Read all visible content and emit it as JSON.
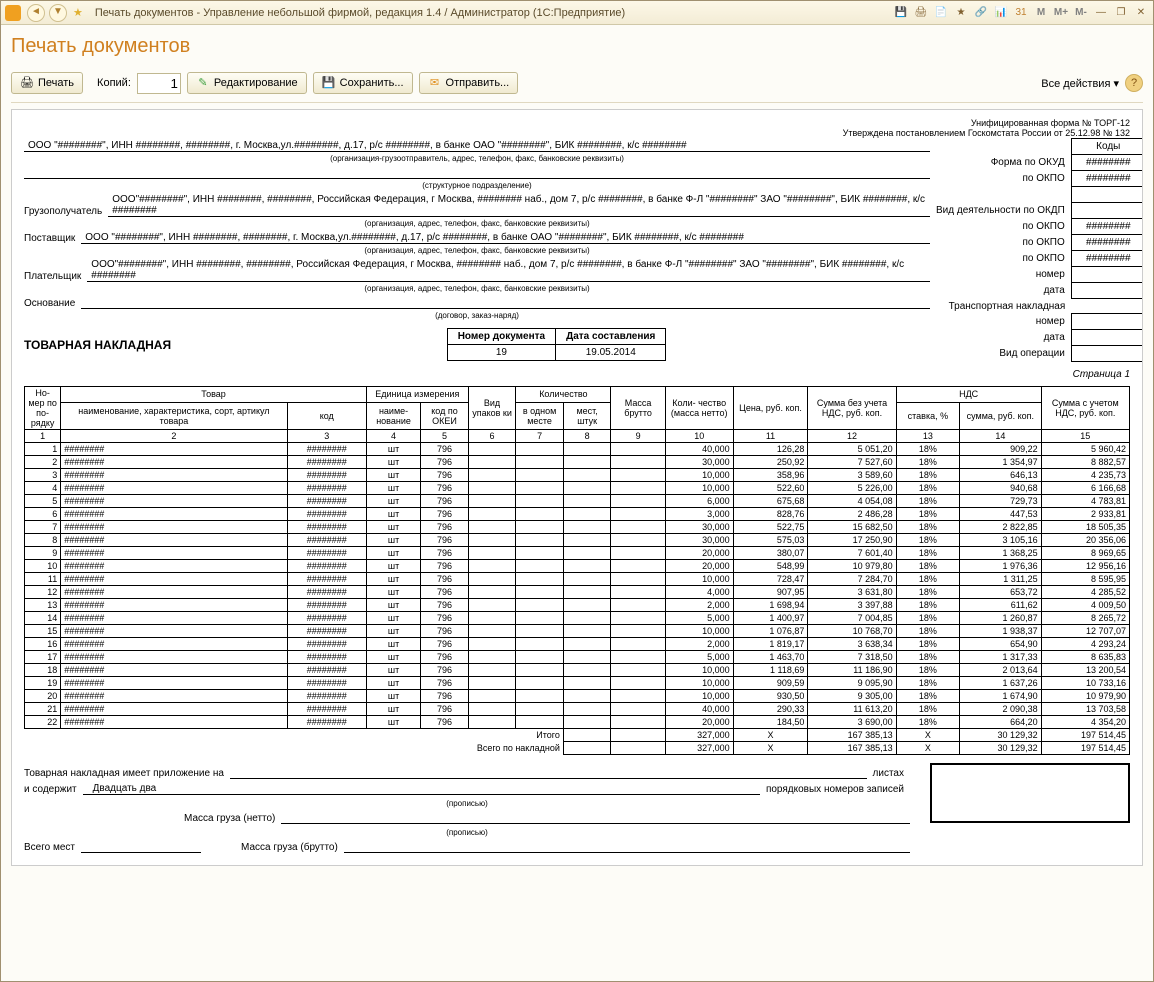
{
  "window": {
    "title": "Печать документов - Управление небольшой фирмой, редакция 1.4 / Администратор  (1С:Предприятие)"
  },
  "page": {
    "title": "Печать документов"
  },
  "toolbar": {
    "print": "Печать",
    "copies_label": "Копий:",
    "copies_value": "1",
    "edit": "Редактирование",
    "save": "Сохранить...",
    "send": "Отправить...",
    "all_actions": "Все действия"
  },
  "doc": {
    "form_note1": "Унифицированная форма № ТОРГ-12",
    "form_note2": "Утверждена постановлением Госкомстата России от 25.12.98 № 132",
    "codes_header": "Коды",
    "okud_label": "Форма по ОКУД",
    "okud": "########",
    "okpo_label": "по ОКПО",
    "okpo": "########",
    "org_line": "ООО \"########\",  ИНН ########,  ########, г. Москва,ул.########, д.17,  р/с ########,  в банке ОАО \"########\",  БИК ########,  к/с ########",
    "org_sub": "(организация-грузоотправитель, адрес, телефон, факс, банковские реквизиты)",
    "struct_sub": "(структурное подразделение)",
    "okdp_label": "Вид деятельности по ОКДП",
    "consignee_label": "Грузополучатель",
    "consignee": "ООО\"########\",  ИНН ########,  ########, Российская Федерация, г Москва, ######## наб., дом 7,  р/с ########,  в банке Ф-Л \"########\" ЗАО \"########\", БИК ########,  к/с ########",
    "supplier_label": "Поставщик",
    "supplier": "ООО \"########\",  ИНН ########,  ########, г. Москва,ул.########, д.17,  р/с ########,  в банке ОАО \"########\",  БИК ########,  к/с ########",
    "payer_label": "Плательщик",
    "payer": "ООО\"########\",  ИНН ########,  ########, Российская Федерация, г Москва, ######## наб., дом 7,  р/с ########,  в банке Ф-Л \"########\" ЗАО \"########\", БИК ########,  к/с ########",
    "req_sub": "(организация, адрес, телефон, факс, банковские реквизиты)",
    "basis_label": "Основание",
    "basis_sub": "(договор, заказ-наряд)",
    "transport_label": "Транспортная накладная",
    "op_type_label": "Вид операции",
    "side_labels": {
      "nomer": "номер",
      "data": "дата"
    },
    "doc_title": "ТОВАРНАЯ НАКЛАДНАЯ",
    "doc_num_header": "Номер документа",
    "doc_date_header": "Дата составления",
    "doc_num": "19",
    "doc_date": "19.05.2014",
    "page_label": "Страница 1"
  },
  "table": {
    "headers": {
      "num": "Но-\nмер\nпо по-\nрядку",
      "goods": "Товар",
      "name": "наименование, характеристика, сорт,\nартикул товара",
      "code": "код",
      "unit": "Единица измерения",
      "unit_name": "наиме-\nнование",
      "unit_code": "код по\nОКЕИ",
      "pack": "Вид\nупаков\nки",
      "qty_group": "Количество",
      "qty_place": "в\nодном\nместе",
      "qty_places": "мест,\nштук",
      "gross": "Масса\nбрутто",
      "net": "Коли-\nчество\n(масса\nнетто)",
      "price": "Цена,\nруб. коп.",
      "sum_no_vat": "Сумма без\nучета НДС,\nруб. коп.",
      "vat": "НДС",
      "vat_rate": "ставка, %",
      "vat_sum": "сумма,\nруб. коп.",
      "sum_vat": "Сумма с\nучетом\nНДС,\nруб. коп."
    },
    "col_nums": [
      "1",
      "2",
      "3",
      "4",
      "5",
      "6",
      "7",
      "8",
      "9",
      "10",
      "11",
      "12",
      "13",
      "14",
      "15"
    ],
    "rows": [
      {
        "n": "1",
        "name": "########",
        "code": "########",
        "un": "шт",
        "uc": "796",
        "qty": "40,000",
        "price": "126,28",
        "sum": "5 051,20",
        "rate": "18%",
        "vat": "909,22",
        "total": "5 960,42"
      },
      {
        "n": "2",
        "name": "########",
        "code": "########",
        "un": "шт",
        "uc": "796",
        "qty": "30,000",
        "price": "250,92",
        "sum": "7 527,60",
        "rate": "18%",
        "vat": "1 354,97",
        "total": "8 882,57"
      },
      {
        "n": "3",
        "name": "########",
        "code": "########",
        "un": "шт",
        "uc": "796",
        "qty": "10,000",
        "price": "358,96",
        "sum": "3 589,60",
        "rate": "18%",
        "vat": "646,13",
        "total": "4 235,73"
      },
      {
        "n": "4",
        "name": "########",
        "code": "########",
        "un": "шт",
        "uc": "796",
        "qty": "10,000",
        "price": "522,60",
        "sum": "5 226,00",
        "rate": "18%",
        "vat": "940,68",
        "total": "6 166,68"
      },
      {
        "n": "5",
        "name": "########",
        "code": "########",
        "un": "шт",
        "uc": "796",
        "qty": "6,000",
        "price": "675,68",
        "sum": "4 054,08",
        "rate": "18%",
        "vat": "729,73",
        "total": "4 783,81"
      },
      {
        "n": "6",
        "name": "########",
        "code": "########",
        "un": "шт",
        "uc": "796",
        "qty": "3,000",
        "price": "828,76",
        "sum": "2 486,28",
        "rate": "18%",
        "vat": "447,53",
        "total": "2 933,81"
      },
      {
        "n": "7",
        "name": "########",
        "code": "########",
        "un": "шт",
        "uc": "796",
        "qty": "30,000",
        "price": "522,75",
        "sum": "15 682,50",
        "rate": "18%",
        "vat": "2 822,85",
        "total": "18 505,35"
      },
      {
        "n": "8",
        "name": "########",
        "code": "########",
        "un": "шт",
        "uc": "796",
        "qty": "30,000",
        "price": "575,03",
        "sum": "17 250,90",
        "rate": "18%",
        "vat": "3 105,16",
        "total": "20 356,06"
      },
      {
        "n": "9",
        "name": "########",
        "code": "########",
        "un": "шт",
        "uc": "796",
        "qty": "20,000",
        "price": "380,07",
        "sum": "7 601,40",
        "rate": "18%",
        "vat": "1 368,25",
        "total": "8 969,65"
      },
      {
        "n": "10",
        "name": "########",
        "code": "########",
        "un": "шт",
        "uc": "796",
        "qty": "20,000",
        "price": "548,99",
        "sum": "10 979,80",
        "rate": "18%",
        "vat": "1 976,36",
        "total": "12 956,16"
      },
      {
        "n": "11",
        "name": "########",
        "code": "########",
        "un": "шт",
        "uc": "796",
        "qty": "10,000",
        "price": "728,47",
        "sum": "7 284,70",
        "rate": "18%",
        "vat": "1 311,25",
        "total": "8 595,95"
      },
      {
        "n": "12",
        "name": "########",
        "code": "########",
        "un": "шт",
        "uc": "796",
        "qty": "4,000",
        "price": "907,95",
        "sum": "3 631,80",
        "rate": "18%",
        "vat": "653,72",
        "total": "4 285,52"
      },
      {
        "n": "13",
        "name": "########",
        "code": "########",
        "un": "шт",
        "uc": "796",
        "qty": "2,000",
        "price": "1 698,94",
        "sum": "3 397,88",
        "rate": "18%",
        "vat": "611,62",
        "total": "4 009,50"
      },
      {
        "n": "14",
        "name": "########",
        "code": "########",
        "un": "шт",
        "uc": "796",
        "qty": "5,000",
        "price": "1 400,97",
        "sum": "7 004,85",
        "rate": "18%",
        "vat": "1 260,87",
        "total": "8 265,72"
      },
      {
        "n": "15",
        "name": "########",
        "code": "########",
        "un": "шт",
        "uc": "796",
        "qty": "10,000",
        "price": "1 076,87",
        "sum": "10 768,70",
        "rate": "18%",
        "vat": "1 938,37",
        "total": "12 707,07"
      },
      {
        "n": "16",
        "name": "########",
        "code": "########",
        "un": "шт",
        "uc": "796",
        "qty": "2,000",
        "price": "1 819,17",
        "sum": "3 638,34",
        "rate": "18%",
        "vat": "654,90",
        "total": "4 293,24"
      },
      {
        "n": "17",
        "name": "########",
        "code": "########",
        "un": "шт",
        "uc": "796",
        "qty": "5,000",
        "price": "1 463,70",
        "sum": "7 318,50",
        "rate": "18%",
        "vat": "1 317,33",
        "total": "8 635,83"
      },
      {
        "n": "18",
        "name": "########",
        "code": "########",
        "un": "шт",
        "uc": "796",
        "qty": "10,000",
        "price": "1 118,69",
        "sum": "11 186,90",
        "rate": "18%",
        "vat": "2 013,64",
        "total": "13 200,54"
      },
      {
        "n": "19",
        "name": "########",
        "code": "########",
        "un": "шт",
        "uc": "796",
        "qty": "10,000",
        "price": "909,59",
        "sum": "9 095,90",
        "rate": "18%",
        "vat": "1 637,26",
        "total": "10 733,16"
      },
      {
        "n": "20",
        "name": "########",
        "code": "########",
        "un": "шт",
        "uc": "796",
        "qty": "10,000",
        "price": "930,50",
        "sum": "9 305,00",
        "rate": "18%",
        "vat": "1 674,90",
        "total": "10 979,90"
      },
      {
        "n": "21",
        "name": "########",
        "code": "########",
        "un": "шт",
        "uc": "796",
        "qty": "40,000",
        "price": "290,33",
        "sum": "11 613,20",
        "rate": "18%",
        "vat": "2 090,38",
        "total": "13 703,58"
      },
      {
        "n": "22",
        "name": "########",
        "code": "########",
        "un": "шт",
        "uc": "796",
        "qty": "20,000",
        "price": "184,50",
        "sum": "3 690,00",
        "rate": "18%",
        "vat": "664,20",
        "total": "4 354,20"
      }
    ],
    "totals": {
      "itogo_label": "Итого",
      "vsego_label": "Всего по накладной",
      "qty": "327,000",
      "x": "X",
      "sum": "167 385,13",
      "vat": "30 129,32",
      "total": "197 514,45"
    }
  },
  "footer": {
    "attach_label": "Товарная накладная имеет приложение на",
    "sheets_label": "листах",
    "contains_label": "и содержит",
    "contains_value": "Двадцать два",
    "records_label": "порядковых номеров записей",
    "propis": "(прописью)",
    "mass_net": "Масса груза (нетто)",
    "mass_gross": "Масса груза (брутто)",
    "places_label": "Всего мест"
  }
}
